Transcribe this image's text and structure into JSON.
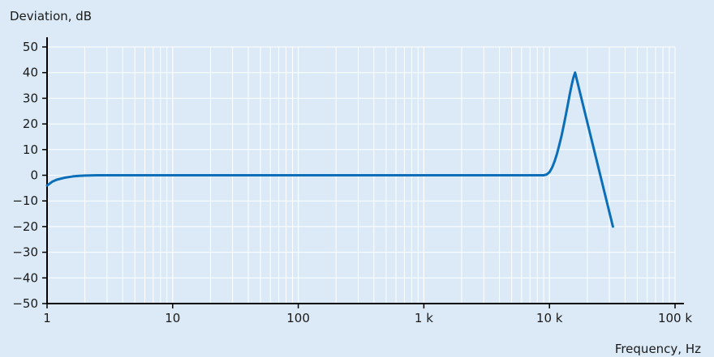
{
  "chart_data": {
    "type": "line",
    "title": "",
    "ylabel": "Deviation, dB",
    "xlabel": "Frequency, Hz",
    "xscale": "log",
    "xlim": [
      1,
      100000
    ],
    "ylim": [
      -50,
      50
    ],
    "grid": true,
    "x_ticks": [
      {
        "value": 1,
        "label": "1"
      },
      {
        "value": 10,
        "label": "10"
      },
      {
        "value": 100,
        "label": "100"
      },
      {
        "value": 1000,
        "label": "1 k"
      },
      {
        "value": 10000,
        "label": "10 k"
      },
      {
        "value": 100000,
        "label": "100 k"
      }
    ],
    "y_ticks": [
      {
        "value": 50,
        "label": "50"
      },
      {
        "value": 40,
        "label": "40"
      },
      {
        "value": 30,
        "label": "30"
      },
      {
        "value": 20,
        "label": "20"
      },
      {
        "value": 10,
        "label": "10"
      },
      {
        "value": 0,
        "label": "0"
      },
      {
        "value": -10,
        "label": "−10"
      },
      {
        "value": -20,
        "label": "−20"
      },
      {
        "value": -30,
        "label": "−30"
      },
      {
        "value": -40,
        "label": "−40"
      },
      {
        "value": -50,
        "label": "−50"
      }
    ],
    "series": [
      {
        "color": "#0a6eb8",
        "x": [
          1,
          1.1,
          1.2,
          1.4,
          1.6,
          1.8,
          2.0,
          2.5,
          3,
          5,
          10,
          100,
          1000,
          9000,
          9500,
          10000,
          10500,
          11000,
          11500,
          12000,
          12500,
          13000,
          13500,
          14000,
          14500,
          15000,
          15500,
          16000,
          32000
        ],
        "y": [
          -4,
          -2.5,
          -1.7,
          -0.9,
          -0.45,
          -0.22,
          -0.1,
          0,
          0,
          0,
          0,
          0,
          0,
          0,
          0.3,
          1.2,
          3,
          5.5,
          8.5,
          12,
          15.5,
          19.5,
          23.5,
          27.5,
          31.5,
          35,
          38,
          40,
          -20
        ]
      }
    ]
  }
}
